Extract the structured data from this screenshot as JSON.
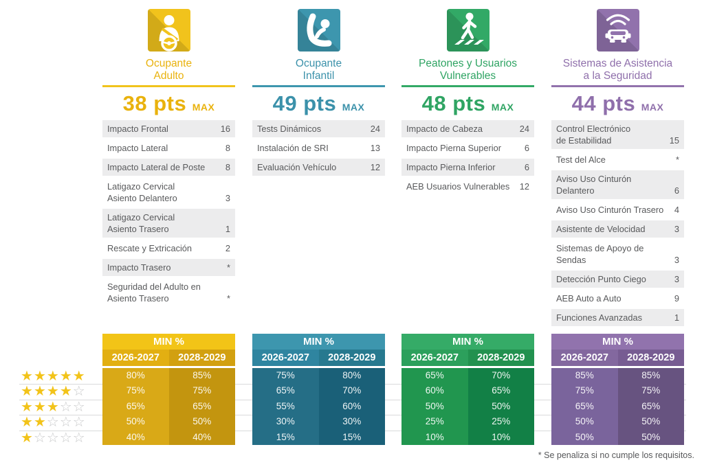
{
  "footnote": "* Se penaliza si no cumple los requisitos.",
  "rating_table": {
    "min_label": "MIN %",
    "period1": "2026-2027",
    "period2": "2028-2029",
    "star_levels": [
      5,
      4,
      3,
      2,
      1
    ],
    "stars_total": 5
  },
  "star_colors": {
    "filled": "#F2C319",
    "empty": "#C9CACB"
  },
  "categories": [
    {
      "id": "adult-occupant",
      "icon": "adult-occupant-icon",
      "title_line1": "Ocupante",
      "title_line2": "Adulto",
      "points": "38",
      "pts_label": "pts",
      "max_label": "MAX",
      "colors": {
        "main": "#F1C31C",
        "title": "#E9B20D",
        "header": "#F2C417",
        "year_left": "#E2AF12",
        "year_right": "#D2A010",
        "data_left": "#D9A917",
        "data_right": "#C3950F"
      },
      "items": [
        {
          "label": "Impacto Frontal",
          "value": "16"
        },
        {
          "label": "Impacto Lateral",
          "value": "8"
        },
        {
          "label": "Impacto Lateral de Poste",
          "value": "8"
        },
        {
          "label": "Latigazo Cervical\nAsiento Delantero",
          "value": "3"
        },
        {
          "label": "Latigazo Cervical\nAsiento Trasero",
          "value": "1"
        },
        {
          "label": "Rescate y Extricación",
          "value": "2"
        },
        {
          "label": "Impacto Trasero",
          "value": "*"
        },
        {
          "label": "Seguridad del Adulto en\nAsiento Trasero",
          "value": "*"
        }
      ],
      "min_rows": [
        [
          "80%",
          "85%"
        ],
        [
          "75%",
          "75%"
        ],
        [
          "65%",
          "65%"
        ],
        [
          "50%",
          "50%"
        ],
        [
          "40%",
          "40%"
        ]
      ]
    },
    {
      "id": "child-occupant",
      "icon": "child-seat-icon",
      "title_line1": "Ocupante",
      "title_line2": "Infantil",
      "points": "49",
      "pts_label": "pts",
      "max_label": "MAX",
      "colors": {
        "main": "#3D96AE",
        "title": "#3B91AA",
        "header": "#3D96AE",
        "year_left": "#2F85A0",
        "year_right": "#27798F",
        "data_left": "#256E86",
        "data_right": "#1A6078"
      },
      "items": [
        {
          "label": "Tests Dinámicos",
          "value": "24"
        },
        {
          "label": "Instalación de SRI",
          "value": "13"
        },
        {
          "label": "Evaluación Vehículo",
          "value": "12"
        }
      ],
      "min_rows": [
        [
          "75%",
          "80%"
        ],
        [
          "65%",
          "70%"
        ],
        [
          "55%",
          "60%"
        ],
        [
          "30%",
          "30%"
        ],
        [
          "15%",
          "15%"
        ]
      ]
    },
    {
      "id": "pedestrians-vulnerable-users",
      "icon": "pedestrian-icon",
      "title_line1": "Peatones y Usuarios",
      "title_line2": "Vulnerables",
      "points": "48",
      "pts_label": "pts",
      "max_label": "MAX",
      "colors": {
        "main": "#32A966",
        "title": "#2FA463",
        "header": "#35AB67",
        "year_left": "#2CA05C",
        "year_right": "#22914F",
        "data_left": "#21964F",
        "data_right": "#128046"
      },
      "items": [
        {
          "label": "Impacto de Cabeza",
          "value": "24"
        },
        {
          "label": "Impacto Pierna Superior",
          "value": "6"
        },
        {
          "label": "Impacto Pierna Inferior",
          "value": "6"
        },
        {
          "label": "AEB Usuarios Vulnerables",
          "value": "12"
        }
      ],
      "min_rows": [
        [
          "65%",
          "70%"
        ],
        [
          "60%",
          "65%"
        ],
        [
          "50%",
          "50%"
        ],
        [
          "25%",
          "25%"
        ],
        [
          "10%",
          "10%"
        ]
      ]
    },
    {
      "id": "safety-assist",
      "icon": "safety-assist-icon",
      "title_line1": "Sistemas de Asistencia",
      "title_line2": "a la Seguridad",
      "points": "44",
      "pts_label": "pts",
      "max_label": "MAX",
      "colors": {
        "main": "#9172AC",
        "title": "#8F6FAB",
        "header": "#9173AD",
        "year_left": "#83689F",
        "year_right": "#775C92",
        "data_left": "#7A649C",
        "data_right": "#675380"
      },
      "items": [
        {
          "label": "Control Electrónico\nde Estabilidad",
          "value": "15"
        },
        {
          "label": "Test del Alce",
          "value": "*"
        },
        {
          "label": "Aviso Uso Cinturón\nDelantero",
          "value": "6"
        },
        {
          "label": "Aviso Uso Cinturón Trasero",
          "value": "4"
        },
        {
          "label": "Asistente de Velocidad",
          "value": "3"
        },
        {
          "label": "Sistemas de Apoyo de\nSendas",
          "value": "3"
        },
        {
          "label": "Detección Punto Ciego",
          "value": "3"
        },
        {
          "label": "AEB Auto a Auto",
          "value": "9"
        },
        {
          "label": "Funciones Avanzadas",
          "value": "1"
        }
      ],
      "min_rows": [
        [
          "85%",
          "85%"
        ],
        [
          "75%",
          "75%"
        ],
        [
          "65%",
          "65%"
        ],
        [
          "50%",
          "50%"
        ],
        [
          "50%",
          "50%"
        ]
      ]
    }
  ],
  "chart_data": [
    {
      "type": "table",
      "title": "Ocupante Adulto",
      "max_points": 38,
      "tests": {
        "Impacto Frontal": 16,
        "Impacto Lateral": 8,
        "Impacto Lateral de Poste": 8,
        "Latigazo Cervical Asiento Delantero": 3,
        "Latigazo Cervical Asiento Trasero": 1,
        "Rescate y Extricación": 2,
        "Impacto Trasero": "*",
        "Seguridad del Adulto en Asiento Trasero": "*"
      },
      "min_percent": {
        "columns": [
          "2026-2027",
          "2028-2029"
        ],
        "stars_5": [
          80,
          85
        ],
        "stars_4": [
          75,
          75
        ],
        "stars_3": [
          65,
          65
        ],
        "stars_2": [
          50,
          50
        ],
        "stars_1": [
          40,
          40
        ]
      }
    },
    {
      "type": "table",
      "title": "Ocupante Infantil",
      "max_points": 49,
      "tests": {
        "Tests Dinámicos": 24,
        "Instalación de SRI": 13,
        "Evaluación Vehículo": 12
      },
      "min_percent": {
        "columns": [
          "2026-2027",
          "2028-2029"
        ],
        "stars_5": [
          75,
          80
        ],
        "stars_4": [
          65,
          70
        ],
        "stars_3": [
          55,
          60
        ],
        "stars_2": [
          30,
          30
        ],
        "stars_1": [
          15,
          15
        ]
      }
    },
    {
      "type": "table",
      "title": "Peatones y Usuarios Vulnerables",
      "max_points": 48,
      "tests": {
        "Impacto de Cabeza": 24,
        "Impacto Pierna Superior": 6,
        "Impacto Pierna Inferior": 6,
        "AEB Usuarios Vulnerables": 12
      },
      "min_percent": {
        "columns": [
          "2026-2027",
          "2028-2029"
        ],
        "stars_5": [
          65,
          70
        ],
        "stars_4": [
          60,
          65
        ],
        "stars_3": [
          50,
          50
        ],
        "stars_2": [
          25,
          25
        ],
        "stars_1": [
          10,
          10
        ]
      }
    },
    {
      "type": "table",
      "title": "Sistemas de Asistencia a la Seguridad",
      "max_points": 44,
      "tests": {
        "Control Electrónico de Estabilidad": 15,
        "Test del Alce": "*",
        "Aviso Uso Cinturón Delantero": 6,
        "Aviso Uso Cinturón Trasero": 4,
        "Asistente de Velocidad": 3,
        "Sistemas de Apoyo de Sendas": 3,
        "Detección Punto Ciego": 3,
        "AEB Auto a Auto": 9,
        "Funciones Avanzadas": 1
      },
      "min_percent": {
        "columns": [
          "2026-2027",
          "2028-2029"
        ],
        "stars_5": [
          85,
          85
        ],
        "stars_4": [
          75,
          75
        ],
        "stars_3": [
          65,
          65
        ],
        "stars_2": [
          50,
          50
        ],
        "stars_1": [
          50,
          50
        ]
      }
    }
  ]
}
